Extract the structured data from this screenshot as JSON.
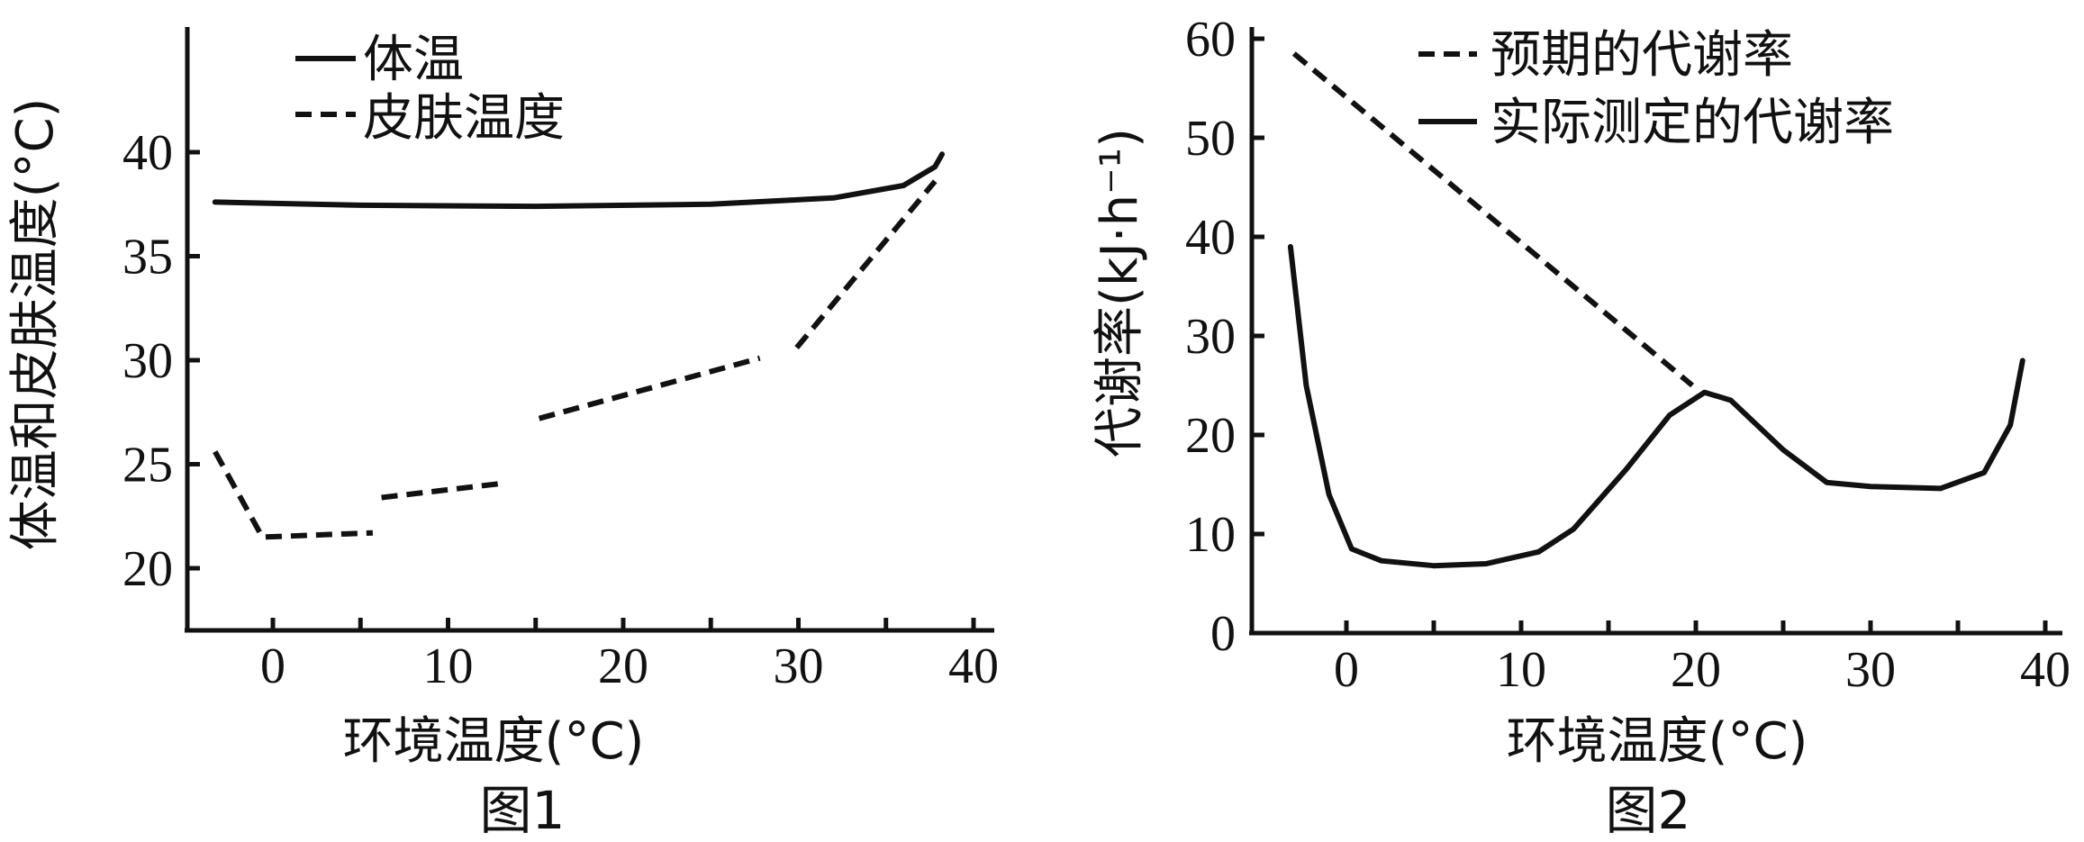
{
  "chart_data": [
    {
      "type": "line",
      "caption": "图1",
      "xlabel": "环境温度(°C)",
      "ylabel": "体温和皮肤温度(°C)",
      "xlim": [
        -5,
        41
      ],
      "ylim": [
        17,
        46
      ],
      "x_ticks": [
        0,
        10,
        20,
        30,
        40
      ],
      "x_minor_ticks": [
        5,
        15,
        25,
        35
      ],
      "y_ticks": [
        20,
        25,
        30,
        35,
        40
      ],
      "legend_position": "top-left",
      "series": [
        {
          "name": "体温",
          "style": "solid",
          "segments": [
            [
              [
                -3.3,
                37.6
              ],
              [
                5,
                37.45
              ],
              [
                15,
                37.4
              ],
              [
                25,
                37.5
              ],
              [
                32,
                37.8
              ],
              [
                36,
                38.4
              ],
              [
                37.8,
                39.3
              ],
              [
                38.2,
                39.9
              ]
            ]
          ]
        },
        {
          "name": "皮肤温度",
          "style": "dashed",
          "segments": [
            [
              [
                -3.3,
                25.6
              ],
              [
                -0.6,
                21.5
              ],
              [
                5.7,
                21.7
              ]
            ],
            [
              [
                6.2,
                23.4
              ],
              [
                13.3,
                24.1
              ]
            ],
            [
              [
                15.2,
                27.2
              ],
              [
                27.8,
                30.1
              ]
            ],
            [
              [
                29.9,
                30.6
              ],
              [
                37.8,
                38.6
              ]
            ]
          ]
        }
      ]
    },
    {
      "type": "line",
      "caption": "图2",
      "xlabel": "环境温度(°C)",
      "ylabel": "代谢率(kJ·h⁻¹)",
      "xlim": [
        -5.5,
        41
      ],
      "ylim": [
        0,
        60
      ],
      "x_ticks": [
        0,
        10,
        20,
        30,
        40
      ],
      "x_minor_ticks": [
        5,
        15,
        25,
        35
      ],
      "y_ticks": [
        0,
        10,
        20,
        30,
        40,
        50,
        60
      ],
      "legend_position": "top-right",
      "series": [
        {
          "name": "预期的代谢率",
          "style": "dashed",
          "segments": [
            [
              [
                -3,
                58.5
              ],
              [
                19.8,
                25
              ]
            ]
          ]
        },
        {
          "name": "实际测定的代谢率",
          "style": "solid",
          "segments": [
            [
              [
                -3.2,
                39
              ],
              [
                -2.3,
                25
              ],
              [
                -1,
                14
              ],
              [
                0.3,
                8.5
              ],
              [
                2,
                7.3
              ],
              [
                5,
                6.8
              ],
              [
                8,
                7
              ],
              [
                11,
                8.2
              ],
              [
                13,
                10.5
              ],
              [
                16,
                16.5
              ],
              [
                18.5,
                22
              ],
              [
                20.5,
                24.3
              ],
              [
                22,
                23.5
              ],
              [
                25,
                18.5
              ],
              [
                27.5,
                15.2
              ],
              [
                30,
                14.8
              ],
              [
                34,
                14.6
              ],
              [
                36.5,
                16.2
              ],
              [
                38,
                21
              ],
              [
                38.7,
                27.5
              ]
            ]
          ]
        }
      ]
    }
  ]
}
